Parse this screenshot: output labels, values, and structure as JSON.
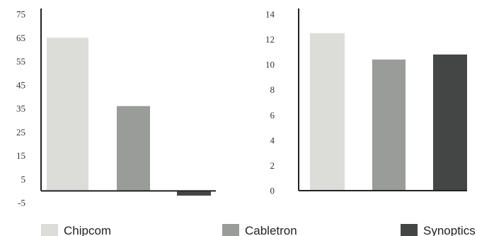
{
  "colors": {
    "Chipcom": "#dcdcd8",
    "Cabletron": "#9a9c99",
    "Synoptics": "#434644",
    "axis": "#222222"
  },
  "legend": {
    "items": [
      {
        "name": "Chipcom",
        "color": "#dcdcd8"
      },
      {
        "name": "Cabletron",
        "color": "#9a9c99"
      },
      {
        "name": "Synoptics",
        "color": "#434644"
      }
    ]
  },
  "chart_data": [
    {
      "type": "bar",
      "title": "",
      "xlabel": "",
      "ylabel": "",
      "categories": [
        "Chipcom",
        "Cabletron",
        "Synoptics"
      ],
      "values": [
        65,
        36,
        -2
      ],
      "ylim": [
        -5,
        75
      ],
      "yticks": [
        "75",
        "65",
        "55",
        "45",
        "35",
        "25",
        "15",
        "5",
        "-5"
      ],
      "ytick_values": [
        75,
        65,
        55,
        45,
        35,
        25,
        15,
        5,
        -5
      ],
      "grid": false
    },
    {
      "type": "bar",
      "title": "",
      "xlabel": "",
      "ylabel": "",
      "categories": [
        "Chipcom",
        "Cabletron",
        "Synoptics"
      ],
      "values": [
        12.5,
        10.4,
        10.8
      ],
      "ylim": [
        0,
        14
      ],
      "yticks": [
        "14",
        "12",
        "10",
        "8",
        "6",
        "4",
        "2",
        "0"
      ],
      "ytick_values": [
        14,
        12,
        10,
        8,
        6,
        4,
        2,
        0
      ],
      "grid": false
    }
  ]
}
